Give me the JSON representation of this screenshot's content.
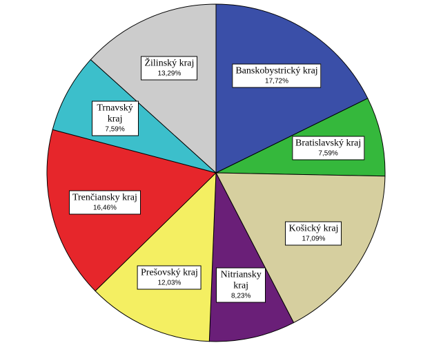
{
  "chart_data": {
    "type": "pie",
    "categories": [
      "Banskobystrický kraj",
      "Bratislavský kraj",
      "Košický kraj",
      "Nitriansky kraj",
      "Prešovský kraj",
      "Trenčiansky kraj",
      "Trnavský kraj",
      "Žilinský kraj"
    ],
    "values": [
      17.72,
      7.59,
      17.09,
      8.23,
      12.03,
      16.46,
      7.59,
      13.29
    ],
    "value_labels": [
      "17,72%",
      "7,59%",
      "17,09%",
      "8,23%",
      "12,03%",
      "16,46%",
      "7,59%",
      "13,29%"
    ],
    "colors": [
      "#3a4fa8",
      "#35b83c",
      "#d6cf9f",
      "#6a1f78",
      "#f4ef62",
      "#e6262b",
      "#3cbfcb",
      "#cccccc"
    ]
  }
}
